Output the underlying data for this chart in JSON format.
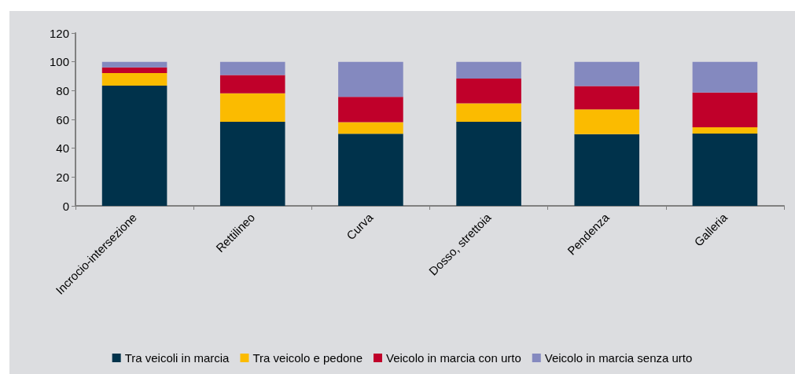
{
  "chart_data": {
    "type": "bar",
    "stacked": true,
    "categories": [
      "Incrocio-intersezione",
      "Rettilineo",
      "Curva",
      "Dosso, strettoia",
      "Pendenza",
      "Galleria"
    ],
    "series": [
      {
        "name": "Tra veicoli in marcia",
        "color": "#00324b",
        "values": [
          83.5,
          58.3,
          50,
          58.3,
          49.8,
          50.2
        ]
      },
      {
        "name": "Tra veicolo e pedone",
        "color": "#fbbb00",
        "values": [
          8.7,
          19.9,
          8.1,
          12.9,
          17.2,
          4.4
        ]
      },
      {
        "name": "Veicolo in marcia con urto",
        "color": "#c0002a",
        "values": [
          4,
          12.6,
          17.6,
          17.1,
          16.2,
          24.1
        ]
      },
      {
        "name": "Veicolo in marcia senza urto",
        "color": "#8489bf",
        "values": [
          3.8,
          9.2,
          24.3,
          11.7,
          16.8,
          21.3
        ]
      }
    ],
    "ylim": [
      0,
      120
    ],
    "yticks": [
      0,
      20,
      40,
      60,
      80,
      100,
      120
    ],
    "legend": "bottom"
  }
}
